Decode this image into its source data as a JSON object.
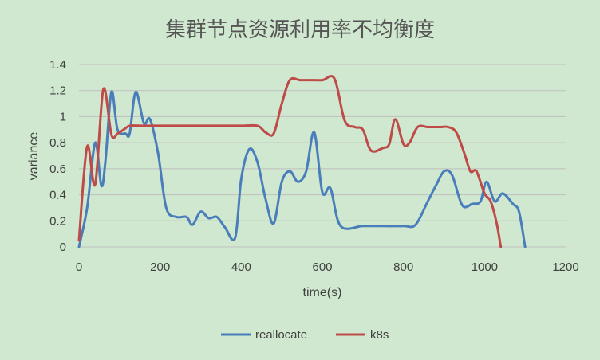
{
  "chart_data": {
    "type": "line",
    "title": "集群节点资源利用率不均衡度",
    "xlabel": "time(s)",
    "ylabel": "variance",
    "xlim": [
      0,
      1200
    ],
    "ylim": [
      0,
      1.4
    ],
    "xticks": [
      0,
      200,
      400,
      600,
      800,
      1000,
      1200
    ],
    "yticks": [
      0,
      0.2,
      0.4,
      0.6,
      0.8,
      1,
      1.2,
      1.4
    ],
    "ytick_labels": [
      "0",
      "0.2",
      "0.4",
      "0.6",
      "0.8",
      "1",
      "1.2",
      "1.4"
    ],
    "grid": "horizontal",
    "legend_position": "bottom",
    "series": [
      {
        "name": "reallocate",
        "color": "#4a7ebb",
        "points": [
          [
            0,
            0
          ],
          [
            20,
            0.3
          ],
          [
            40,
            0.8
          ],
          [
            55,
            0.47
          ],
          [
            65,
            0.65
          ],
          [
            80,
            1.19
          ],
          [
            95,
            0.9
          ],
          [
            115,
            0.87
          ],
          [
            125,
            0.87
          ],
          [
            140,
            1.19
          ],
          [
            160,
            0.95
          ],
          [
            175,
            0.98
          ],
          [
            195,
            0.72
          ],
          [
            215,
            0.3
          ],
          [
            240,
            0.23
          ],
          [
            265,
            0.23
          ],
          [
            280,
            0.17
          ],
          [
            300,
            0.27
          ],
          [
            320,
            0.22
          ],
          [
            340,
            0.23
          ],
          [
            360,
            0.15
          ],
          [
            385,
            0.07
          ],
          [
            400,
            0.52
          ],
          [
            420,
            0.75
          ],
          [
            440,
            0.65
          ],
          [
            460,
            0.37
          ],
          [
            480,
            0.18
          ],
          [
            500,
            0.5
          ],
          [
            520,
            0.58
          ],
          [
            540,
            0.5
          ],
          [
            560,
            0.58
          ],
          [
            580,
            0.88
          ],
          [
            600,
            0.42
          ],
          [
            620,
            0.45
          ],
          [
            645,
            0.16
          ],
          [
            700,
            0.16
          ],
          [
            750,
            0.16
          ],
          [
            800,
            0.16
          ],
          [
            830,
            0.17
          ],
          [
            860,
            0.35
          ],
          [
            880,
            0.47
          ],
          [
            900,
            0.58
          ],
          [
            920,
            0.55
          ],
          [
            945,
            0.32
          ],
          [
            970,
            0.33
          ],
          [
            990,
            0.35
          ],
          [
            1005,
            0.5
          ],
          [
            1025,
            0.35
          ],
          [
            1045,
            0.41
          ],
          [
            1070,
            0.33
          ],
          [
            1085,
            0.27
          ],
          [
            1100,
            0
          ]
        ]
      },
      {
        "name": "k8s",
        "color": "#be4b48",
        "points": [
          [
            0,
            0.05
          ],
          [
            20,
            0.77
          ],
          [
            40,
            0.48
          ],
          [
            60,
            1.21
          ],
          [
            80,
            0.86
          ],
          [
            95,
            0.87
          ],
          [
            110,
            0.9
          ],
          [
            125,
            0.93
          ],
          [
            150,
            0.93
          ],
          [
            200,
            0.93
          ],
          [
            240,
            0.93
          ],
          [
            300,
            0.93
          ],
          [
            350,
            0.93
          ],
          [
            400,
            0.93
          ],
          [
            440,
            0.93
          ],
          [
            460,
            0.88
          ],
          [
            480,
            0.87
          ],
          [
            500,
            1.1
          ],
          [
            520,
            1.28
          ],
          [
            545,
            1.28
          ],
          [
            570,
            1.28
          ],
          [
            600,
            1.28
          ],
          [
            630,
            1.29
          ],
          [
            655,
            0.97
          ],
          [
            680,
            0.92
          ],
          [
            700,
            0.9
          ],
          [
            720,
            0.74
          ],
          [
            750,
            0.76
          ],
          [
            765,
            0.79
          ],
          [
            780,
            0.98
          ],
          [
            800,
            0.79
          ],
          [
            815,
            0.8
          ],
          [
            835,
            0.92
          ],
          [
            860,
            0.92
          ],
          [
            890,
            0.92
          ],
          [
            910,
            0.92
          ],
          [
            930,
            0.88
          ],
          [
            950,
            0.72
          ],
          [
            965,
            0.58
          ],
          [
            980,
            0.58
          ],
          [
            1000,
            0.41
          ],
          [
            1015,
            0.35
          ],
          [
            1030,
            0.18
          ],
          [
            1040,
            0
          ]
        ]
      }
    ]
  }
}
